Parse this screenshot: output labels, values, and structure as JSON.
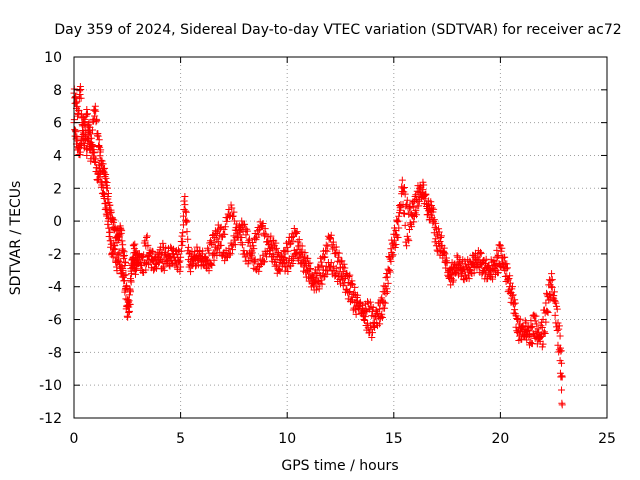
{
  "chart_data": {
    "type": "scatter",
    "title": "Day 359 of 2024, Sidereal Day-to-day VTEC variation (SDTVAR) for receiver ac72",
    "xlabel": "GPS time / hours",
    "ylabel": "SDTVAR / TECUs",
    "xlim": [
      0,
      25
    ],
    "ylim": [
      -12,
      10
    ],
    "xticks": [
      "0",
      "5",
      "10",
      "15",
      "20",
      "25"
    ],
    "xtick_values": [
      0,
      5,
      10,
      15,
      20,
      25
    ],
    "yticks": [
      "10",
      "8",
      "6",
      "4",
      "2",
      "0",
      "-2",
      "-4",
      "-6",
      "-8",
      "-10",
      "-12"
    ],
    "ytick_values": [
      10,
      8,
      6,
      4,
      2,
      0,
      -2,
      -4,
      -6,
      -8,
      -10,
      -12
    ],
    "grid": true,
    "marker": "+",
    "color": "#ff0000",
    "series": [
      {
        "name": "ac72",
        "x": [
          0.0,
          0.1,
          0.2,
          0.3,
          0.4,
          0.5,
          0.6,
          0.7,
          0.8,
          0.9,
          1.0,
          1.1,
          1.2,
          1.3,
          1.4,
          1.5,
          1.6,
          1.7,
          1.8,
          1.9,
          2.0,
          2.1,
          2.2,
          2.3,
          2.4,
          2.5,
          2.6,
          2.7,
          2.8,
          2.9,
          3.0,
          3.2,
          3.4,
          3.6,
          3.8,
          4.0,
          4.2,
          4.4,
          4.6,
          4.8,
          5.0,
          5.2,
          5.4,
          5.6,
          5.8,
          6.0,
          6.2,
          6.4,
          6.6,
          6.8,
          7.0,
          7.2,
          7.4,
          7.6,
          7.8,
          8.0,
          8.2,
          8.4,
          8.6,
          8.8,
          9.0,
          9.2,
          9.4,
          9.6,
          9.8,
          10.0,
          10.2,
          10.4,
          10.6,
          10.8,
          11.0,
          11.2,
          11.4,
          11.6,
          11.8,
          12.0,
          12.2,
          12.4,
          12.6,
          12.8,
          13.0,
          13.2,
          13.4,
          13.6,
          13.8,
          14.0,
          14.2,
          14.4,
          14.6,
          14.8,
          15.0,
          15.2,
          15.4,
          15.6,
          15.8,
          16.0,
          16.2,
          16.4,
          16.6,
          16.8,
          17.0,
          17.2,
          17.4,
          17.6,
          17.8,
          18.0,
          18.2,
          18.4,
          18.6,
          18.8,
          19.0,
          19.2,
          19.4,
          19.6,
          19.8,
          20.0,
          20.2,
          20.4,
          20.6,
          20.8,
          21.0,
          21.2,
          21.4,
          21.6,
          21.8,
          22.0,
          22.2,
          22.4,
          22.6,
          22.8,
          22.9
        ],
        "y": [
          7.8,
          7.2,
          6.5,
          8.2,
          5.5,
          4.6,
          6.8,
          5.0,
          3.8,
          6.2,
          7.0,
          5.2,
          4.5,
          3.5,
          3.0,
          2.6,
          1.5,
          0.5,
          0.2,
          -0.5,
          -1.0,
          -0.8,
          -0.5,
          -1.8,
          -2.5,
          -4.8,
          -5.5,
          -3.2,
          -1.5,
          -2.0,
          -2.6,
          -2.2,
          -1.0,
          -2.5,
          -2.8,
          -2.0,
          -1.6,
          -2.4,
          -2.6,
          -1.8,
          -2.2,
          1.5,
          -2.0,
          -2.3,
          -1.8,
          -2.5,
          -2.4,
          -1.2,
          -1.0,
          -0.5,
          -0.8,
          0.2,
          0.8,
          -0.4,
          -1.0,
          -2.0,
          -2.4,
          -1.5,
          -0.6,
          -0.3,
          -0.8,
          -1.8,
          -2.5,
          -3.0,
          -2.2,
          -1.6,
          -1.0,
          -0.7,
          -1.5,
          -2.2,
          -2.6,
          -3.4,
          -3.2,
          -2.5,
          -1.8,
          -1.0,
          -1.6,
          -2.2,
          -2.8,
          -3.2,
          -3.8,
          -4.5,
          -5.2,
          -5.6,
          -5.0,
          -5.5,
          -6.2,
          -5.8,
          -5.0,
          -3.0,
          -1.5,
          -1.0,
          2.5,
          1.0,
          0.5,
          1.5,
          2.0,
          1.5,
          1.0,
          0.8,
          -0.5,
          -1.0,
          -2.5,
          -3.0,
          -2.8,
          -3.0,
          -2.6,
          -2.8,
          -2.5,
          -2.2,
          -2.8,
          -3.0,
          -3.5,
          -2.5,
          -3.0,
          -2.8,
          -2.2,
          -3.5,
          -4.5,
          -6.0,
          -6.5,
          -7.0,
          -6.5,
          -5.8,
          -6.8,
          -7.5,
          -5.5,
          -4.0,
          -5.0,
          -7.0,
          -9.5
        ],
        "y2": [
          6.0,
          5.0,
          4.5,
          4.2,
          5.8,
          6.2,
          4.0,
          6.0,
          4.8,
          4.2,
          3.8,
          2.5,
          3.2,
          2.2,
          1.5,
          0.8,
          0.0,
          -1.2,
          -2.0,
          -1.5,
          -2.8,
          -2.0,
          -3.2,
          -3.0,
          -4.2,
          -5.8,
          -4.5,
          -2.6,
          -2.5,
          -3.0,
          -2.0,
          -3.0,
          -2.6,
          -2.0,
          -2.2,
          -2.5,
          -2.8,
          -2.0,
          -1.8,
          -2.6,
          -2.8,
          1.0,
          -2.8,
          -2.6,
          -2.4,
          -2.0,
          -2.8,
          -2.6,
          -2.0,
          -1.5,
          -2.0,
          -2.2,
          -1.5,
          -1.0,
          -0.4,
          -0.2,
          -1.2,
          -2.5,
          -2.8,
          -2.6,
          -2.0,
          -1.2,
          -1.5,
          -2.0,
          -2.6,
          -2.8,
          -2.4,
          -2.0,
          -2.2,
          -2.8,
          -3.4,
          -3.8,
          -4.0,
          -3.6,
          -3.0,
          -2.8,
          -3.0,
          -3.4,
          -3.6,
          -4.2,
          -4.8,
          -5.4,
          -5.0,
          -6.0,
          -6.5,
          -6.8,
          -5.5,
          -4.8,
          -4.0,
          -2.2,
          -0.8,
          0.0,
          1.8,
          -1.5,
          -0.2,
          0.5,
          1.2,
          2.2,
          0.4,
          0.2,
          -1.5,
          -1.8,
          -2.0,
          -3.5,
          -3.6,
          -2.2,
          -3.2,
          -3.5,
          -3.0,
          -2.8,
          -2.0,
          -2.4,
          -2.8,
          -3.4,
          -2.2,
          -1.5,
          -3.0,
          -4.2,
          -5.0,
          -6.8,
          -7.2,
          -6.2,
          -7.4,
          -7.0,
          -7.2,
          -6.0,
          -4.5,
          -3.2,
          -6.2,
          -8.5,
          -11.2
        ]
      }
    ]
  }
}
